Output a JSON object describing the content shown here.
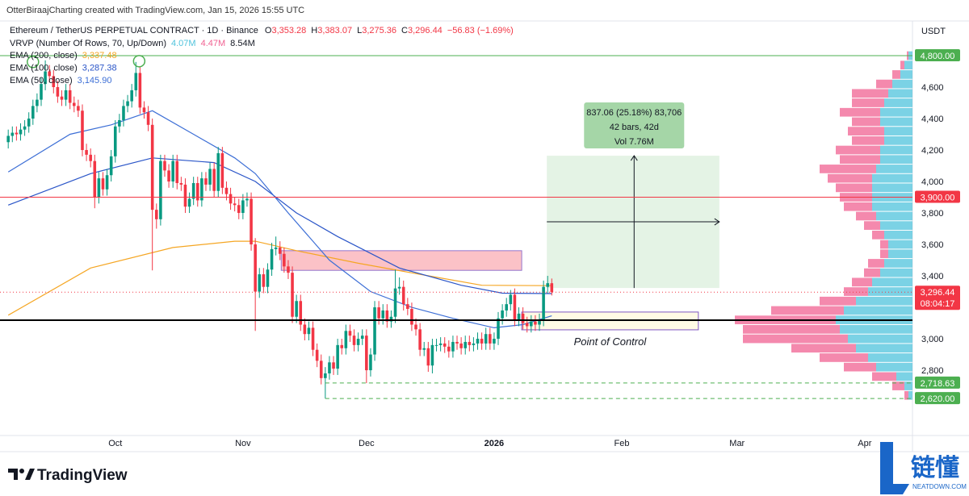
{
  "header": {
    "credit": "OtterBiraajCharting created with TradingView.com, Jan 15, 2026 15:55 UTC"
  },
  "chart_data": {
    "type": "candlestick",
    "legend": {
      "symbol": "Ethereum / TetherUS PERPETUAL CONTRACT · 1D · Binance",
      "ohlc": [
        {
          "label": "O",
          "value": "3,353.28"
        },
        {
          "label": "H",
          "value": "3,383.07"
        },
        {
          "label": "L",
          "value": "3,275.36"
        },
        {
          "label": "C",
          "value": "3,296.44"
        }
      ],
      "change": "−56.83 (−1.69%)",
      "vrvp": {
        "name": "VRVP (Number Of Rows, 70, Up/Down)",
        "up": "4.07M",
        "down": "4.47M",
        "total": "8.54M"
      }
    },
    "currency": "USDT",
    "up_color": "#089981",
    "down_color": "#f23645",
    "xlim": [
      -2,
      219.6
    ],
    "xticks": [
      {
        "value": 26,
        "label": "Oct"
      },
      {
        "value": 57,
        "label": "Nov"
      },
      {
        "value": 87,
        "label": "Dec"
      },
      {
        "value": 118,
        "label": "2026"
      },
      {
        "value": 149,
        "label": "Feb"
      },
      {
        "value": 177,
        "label": "Mar"
      },
      {
        "value": 208,
        "label": "Apr"
      }
    ],
    "ylim": [
      2385,
      5000
    ],
    "yticks": [
      {
        "value": 2800,
        "label": "2,800"
      },
      {
        "value": 3000,
        "label": "3,000"
      },
      {
        "value": 3400,
        "label": "3,400"
      },
      {
        "value": 3600,
        "label": "3,600"
      },
      {
        "value": 3800,
        "label": "3,800"
      },
      {
        "value": 4000,
        "label": "4,000"
      },
      {
        "value": 4200,
        "label": "4,200"
      },
      {
        "value": 4400,
        "label": "4,400"
      },
      {
        "value": 4600,
        "label": "4,600"
      }
    ],
    "grid": false,
    "candles": {
      "open": [
        4250,
        4290,
        4310,
        4300,
        4330,
        4350,
        4400,
        4480,
        4520,
        4620,
        4700,
        4670,
        4600,
        4540,
        4520,
        4580,
        4500,
        4480,
        4450,
        4200,
        4170,
        4130,
        3900,
        4020,
        3950,
        4040,
        4160,
        4350,
        4390,
        4480,
        4510,
        4580,
        4690,
        4470,
        4440,
        4360,
        3820,
        3760,
        4130,
        4070,
        4000,
        4130,
        3990,
        3980,
        3840,
        3890,
        3990,
        3880,
        4020,
        3980,
        4080,
        3940,
        4180,
        3960,
        3920,
        3860,
        3850,
        3800,
        3880,
        3890,
        3600,
        3300,
        3410,
        3330,
        3440,
        3570,
        3580,
        3540,
        3460,
        3420,
        3140,
        3240,
        3090,
        3030,
        3070,
        2930,
        2860,
        2750,
        2780,
        2850,
        2810,
        2960,
        2940,
        3050,
        3020,
        2960,
        3000,
        3020,
        2800,
        2900,
        3200,
        3130,
        3180,
        3110,
        3140,
        3320,
        3330,
        3220,
        3190,
        3090,
        3060,
        2930,
        2940,
        2830,
        2960,
        2960,
        2970,
        2950,
        2920,
        2980,
        2970,
        2940,
        2980,
        2960,
        2970,
        3000,
        2970,
        3030,
        2970,
        3000,
        3130,
        3180,
        3220,
        3280,
        3120,
        3160,
        3100,
        3080,
        3110,
        3090,
        3120,
        3330,
        3353.28
      ],
      "high": [
        4330,
        4350,
        4350,
        4370,
        4390,
        4440,
        4520,
        4560,
        4660,
        4770,
        4740,
        4710,
        4640,
        4580,
        4620,
        4620,
        4540,
        4520,
        4490,
        4240,
        4210,
        4170,
        4060,
        4060,
        4080,
        4200,
        4390,
        4430,
        4520,
        4550,
        4620,
        4760,
        4730,
        4510,
        4480,
        4400,
        3860,
        4170,
        4170,
        4110,
        4170,
        4170,
        4030,
        4020,
        3930,
        4030,
        4030,
        4060,
        4060,
        4120,
        4120,
        4220,
        4220,
        4000,
        3960,
        3900,
        3890,
        3920,
        3930,
        3930,
        3640,
        3450,
        3450,
        3480,
        3610,
        3650,
        3620,
        3580,
        3500,
        3460,
        3280,
        3280,
        3130,
        3110,
        3110,
        2970,
        2900,
        2820,
        2890,
        2890,
        3000,
        3000,
        3090,
        3090,
        3060,
        3040,
        3060,
        3060,
        2940,
        3240,
        3240,
        3220,
        3220,
        3180,
        3440,
        3390,
        3370,
        3260,
        3230,
        3130,
        3100,
        2980,
        2980,
        3000,
        3000,
        3010,
        3010,
        2990,
        3020,
        3020,
        3010,
        3020,
        3020,
        3010,
        3040,
        3040,
        3070,
        3070,
        3040,
        3170,
        3220,
        3260,
        3310,
        3320,
        3200,
        3200,
        3140,
        3150,
        3150,
        3160,
        3370,
        3400,
        3383.07
      ],
      "low": [
        4210,
        4250,
        4260,
        4260,
        4290,
        4310,
        4360,
        4440,
        4480,
        4580,
        4630,
        4560,
        4500,
        4480,
        4480,
        4460,
        4440,
        4410,
        4160,
        4130,
        4090,
        3830,
        3860,
        3910,
        3910,
        4000,
        4120,
        4310,
        4350,
        4440,
        4470,
        4540,
        4430,
        4400,
        4320,
        3435,
        3700,
        3720,
        4030,
        3960,
        3960,
        3950,
        3940,
        3800,
        3800,
        3850,
        3840,
        3840,
        3940,
        3940,
        3900,
        3900,
        3920,
        3880,
        3820,
        3810,
        3760,
        3760,
        3840,
        3560,
        3050,
        3260,
        3290,
        3290,
        3400,
        3530,
        3500,
        3420,
        3380,
        3100,
        3100,
        3050,
        2990,
        2990,
        2890,
        2820,
        2710,
        2620,
        2740,
        2770,
        2770,
        2900,
        2900,
        2980,
        2920,
        2920,
        2960,
        2718,
        2760,
        2860,
        3090,
        3090,
        3070,
        3070,
        3100,
        3280,
        3180,
        3150,
        3050,
        3020,
        2890,
        2890,
        2790,
        2780,
        2920,
        2920,
        2910,
        2880,
        2880,
        2930,
        2900,
        2900,
        2920,
        2920,
        2930,
        2930,
        2930,
        2930,
        2930,
        2960,
        3090,
        3140,
        3180,
        3080,
        3080,
        3060,
        3040,
        3040,
        3050,
        3050,
        3080,
        3290,
        3275.36
      ],
      "close": [
        4290,
        4310,
        4300,
        4330,
        4350,
        4400,
        4480,
        4520,
        4620,
        4700,
        4670,
        4600,
        4540,
        4520,
        4580,
        4500,
        4480,
        4450,
        4200,
        4170,
        4130,
        3900,
        4020,
        3950,
        4040,
        4160,
        4350,
        4390,
        4480,
        4510,
        4580,
        4690,
        4470,
        4440,
        4360,
        3820,
        3760,
        4130,
        4070,
        4000,
        4130,
        3990,
        3980,
        3840,
        3890,
        3990,
        3880,
        4020,
        3980,
        4080,
        3940,
        4180,
        3960,
        3920,
        3860,
        3850,
        3800,
        3880,
        3890,
        3600,
        3300,
        3410,
        3330,
        3440,
        3570,
        3580,
        3540,
        3460,
        3420,
        3140,
        3240,
        3090,
        3030,
        3070,
        2930,
        2860,
        2750,
        2780,
        2850,
        2810,
        2960,
        2940,
        3050,
        3020,
        2960,
        3000,
        3020,
        2800,
        2900,
        3200,
        3130,
        3180,
        3110,
        3140,
        3320,
        3330,
        3220,
        3190,
        3090,
        3060,
        2930,
        2940,
        2830,
        2960,
        2960,
        2970,
        2950,
        2920,
        2980,
        2970,
        2940,
        2980,
        2960,
        2970,
        3000,
        2970,
        3030,
        2970,
        3000,
        3130,
        3180,
        3220,
        3280,
        3120,
        3160,
        3100,
        3080,
        3110,
        3090,
        3120,
        3330,
        3353.28,
        3296.44
      ]
    },
    "series": [
      {
        "name": "EMA (200, close)",
        "value_label": "3,337.48",
        "color": "#f5a623",
        "x": [
          0,
          20,
          40,
          55,
          60,
          70,
          85,
          100,
          115,
          132
        ],
        "values": [
          3150,
          3450,
          3580,
          3620,
          3620,
          3560,
          3480,
          3410,
          3340,
          3337.48
        ]
      },
      {
        "name": "EMA (100, close)",
        "value_label": "3,287.38",
        "color": "#2a55c8",
        "x": [
          0,
          20,
          35,
          50,
          60,
          70,
          80,
          95,
          110,
          120,
          132
        ],
        "values": [
          3850,
          4050,
          4150,
          4120,
          4000,
          3800,
          3650,
          3450,
          3340,
          3290,
          3287.38
        ]
      },
      {
        "name": "EMA (50, close)",
        "value_label": "3,145.90",
        "color": "#3d6fd6",
        "x": [
          0,
          15,
          25,
          35,
          45,
          55,
          60,
          68,
          78,
          88,
          98,
          108,
          118,
          125,
          132
        ],
        "values": [
          4060,
          4300,
          4360,
          4450,
          4300,
          4150,
          4050,
          3800,
          3500,
          3300,
          3200,
          3130,
          3070,
          3090,
          3145.9
        ]
      }
    ],
    "profile": {
      "up_color": "#4fc3dc",
      "down_color": "#f06292",
      "step": 60,
      "prices": [
        2640,
        2700,
        2760,
        2820,
        2880,
        2940,
        3000,
        3060,
        3120,
        3180,
        3240,
        3300,
        3360,
        3420,
        3480,
        3540,
        3600,
        3660,
        3720,
        3780,
        3840,
        3900,
        3960,
        4020,
        4080,
        4140,
        4200,
        4260,
        4320,
        4380,
        4440,
        4500,
        4560,
        4620,
        4680,
        4740,
        4800
      ],
      "up": [
        5,
        10,
        20,
        45,
        55,
        70,
        80,
        90,
        95,
        85,
        70,
        55,
        50,
        40,
        35,
        30,
        30,
        35,
        40,
        45,
        50,
        50,
        50,
        50,
        45,
        40,
        40,
        35,
        35,
        40,
        40,
        35,
        30,
        25,
        15,
        10,
        5
      ],
      "down": [
        5,
        15,
        30,
        40,
        60,
        80,
        130,
        120,
        125,
        90,
        45,
        30,
        25,
        20,
        20,
        10,
        10,
        15,
        20,
        25,
        35,
        40,
        45,
        55,
        70,
        50,
        55,
        40,
        45,
        35,
        50,
        40,
        45,
        20,
        10,
        5,
        2
      ]
    },
    "levels": [
      {
        "value": 4800,
        "label": "4,800.00",
        "color": "#4caf50",
        "style": "solid"
      },
      {
        "value": 3900,
        "label": "3,900.00",
        "color": "#f23645",
        "style": "solid"
      },
      {
        "value": 3296.44,
        "label": "3,296.44",
        "color": "#f23645",
        "style": "dotted",
        "countdown": "08:04:17"
      },
      {
        "value": 3118,
        "color": "#000000",
        "style": "thick"
      },
      {
        "value": 2718.63,
        "label": "2,718.63",
        "color": "#4caf50",
        "style": "dashed",
        "from": 77
      },
      {
        "value": 2620,
        "label": "2,620.00",
        "color": "#4caf50",
        "style": "dashed",
        "from": 77
      }
    ],
    "zones": [
      {
        "x": [
          66.3,
          124.7
        ],
        "y": [
          3435,
          3560
        ],
        "fill": "rgba(242,54,69,0.3)",
        "stroke": "#9575cd"
      },
      {
        "x": [
          124.7,
          167.6
        ],
        "y": [
          3057,
          3170
        ],
        "fill": "rgba(255,235,150,0.25)",
        "stroke": "#7e57c2",
        "label": "Point of Control"
      }
    ],
    "position": {
      "x": [
        130.8,
        172.7
      ],
      "entry": 3323,
      "target": 4164,
      "center": 152,
      "stats": [
        "837.06 (25.18%) 83,706",
        "42 bars, 42d",
        "Vol 7.76M"
      ]
    },
    "markers": [
      {
        "x": 6,
        "value": 4760,
        "color": "#4caf50"
      },
      {
        "x": 31.8,
        "value": 4765,
        "color": "#4caf50"
      }
    ]
  },
  "footer": {
    "brand": "TradingView",
    "logo": "链懂",
    "logo_sub": "NEATDOWN.COM"
  }
}
